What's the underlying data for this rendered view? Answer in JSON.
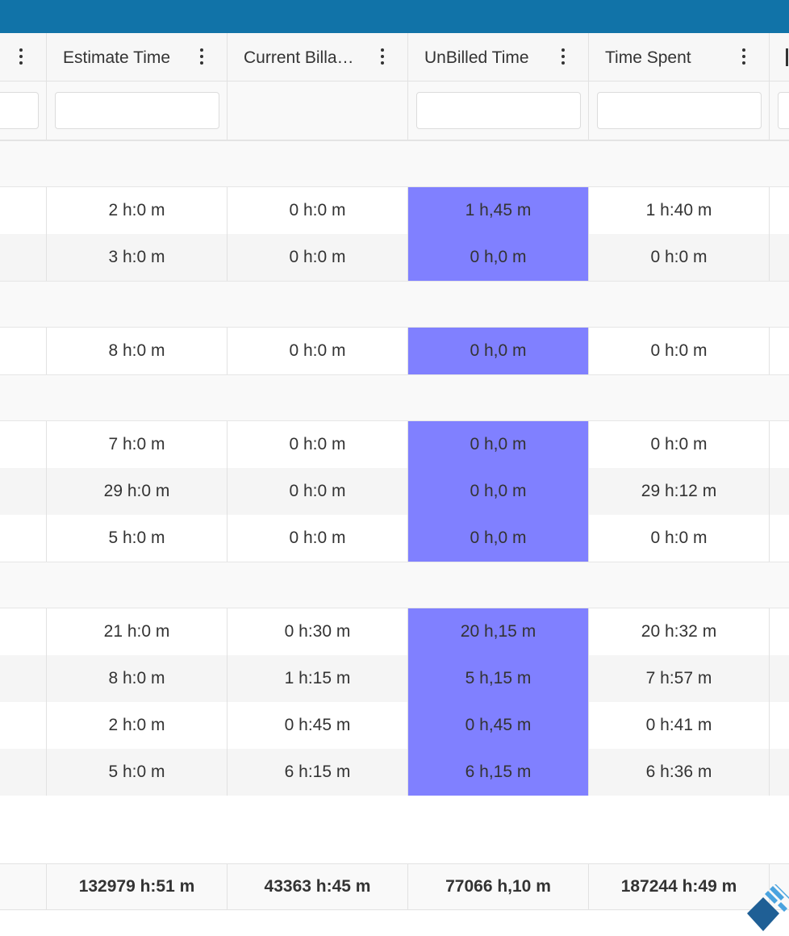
{
  "header": {
    "columns": [
      {
        "label": ""
      },
      {
        "label": "Estimate Time"
      },
      {
        "label": "Current Billa…"
      },
      {
        "label": "UnBilled Time"
      },
      {
        "label": "Time Spent"
      }
    ]
  },
  "filters": {
    "col0_value": "",
    "estimate_value": "",
    "unbilled_value": "",
    "spent_value": "",
    "col5_value": ""
  },
  "rows": [
    {
      "type": "group"
    },
    {
      "type": "data",
      "estimate": "2 h:0 m",
      "billable": "0 h:0 m",
      "unbilled": "1 h,45 m",
      "spent": "1 h:40 m"
    },
    {
      "type": "data",
      "estimate": "3 h:0 m",
      "billable": "0 h:0 m",
      "unbilled": "0 h,0 m",
      "spent": "0 h:0 m"
    },
    {
      "type": "group"
    },
    {
      "type": "data",
      "estimate": "8 h:0 m",
      "billable": "0 h:0 m",
      "unbilled": "0 h,0 m",
      "spent": "0 h:0 m"
    },
    {
      "type": "group"
    },
    {
      "type": "data",
      "estimate": "7 h:0 m",
      "billable": "0 h:0 m",
      "unbilled": "0 h,0 m",
      "spent": "0 h:0 m"
    },
    {
      "type": "data",
      "estimate": "29 h:0 m",
      "billable": "0 h:0 m",
      "unbilled": "0 h,0 m",
      "spent": "29 h:12 m"
    },
    {
      "type": "data",
      "estimate": "5 h:0 m",
      "billable": "0 h:0 m",
      "unbilled": "0 h,0 m",
      "spent": "0 h:0 m"
    },
    {
      "type": "group"
    },
    {
      "type": "data",
      "estimate": "21 h:0 m",
      "billable": "0 h:30 m",
      "unbilled": "20 h,15 m",
      "spent": "20 h:32 m"
    },
    {
      "type": "data",
      "estimate": "8 h:0 m",
      "billable": "1 h:15 m",
      "unbilled": "5 h,15 m",
      "spent": "7 h:57 m"
    },
    {
      "type": "data",
      "estimate": "2 h:0 m",
      "billable": "0 h:45 m",
      "unbilled": "0 h,45 m",
      "spent": "0 h:41 m"
    },
    {
      "type": "data",
      "estimate": "5 h:0 m",
      "billable": "6 h:15 m",
      "unbilled": "6 h,15 m",
      "spent": "6 h:36 m"
    }
  ],
  "totals": {
    "estimate": "132979 h:51 m",
    "billable": "43363 h:45 m",
    "unbilled": "77066 h,10 m",
    "spent": "187244 h:49 m"
  },
  "colors": {
    "topbar": "#1173a8",
    "highlight": "#8080ff",
    "logo_dark": "#1f5f95",
    "logo_light": "#4aa3df"
  }
}
